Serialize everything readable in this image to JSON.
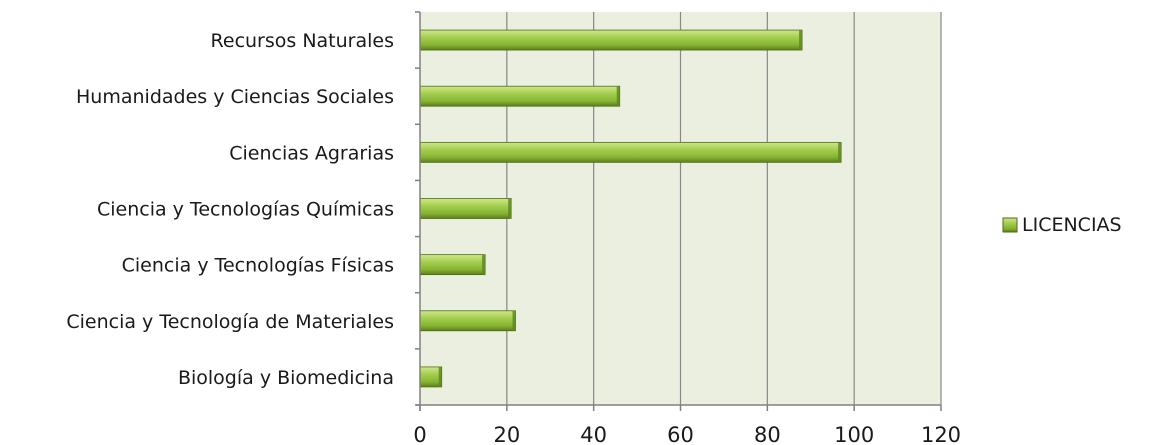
{
  "chart_data": {
    "type": "bar",
    "orientation": "horizontal",
    "categories": [
      "Recursos Naturales",
      "Humanidades y Ciencias Sociales",
      "Ciencias Agrarias",
      "Ciencia y Tecnologías Químicas",
      "Ciencia y Tecnologías Físicas",
      "Ciencia y Tecnología de Materiales",
      "Biología y Biomedicina"
    ],
    "series": [
      {
        "name": "LICENCIAS",
        "values": [
          88,
          46,
          97,
          21,
          15,
          22,
          5
        ]
      }
    ],
    "xlim": [
      0,
      120
    ],
    "xticks": [
      "0",
      "20",
      "40",
      "60",
      "80",
      "100",
      "120"
    ],
    "grid": true,
    "legend": "right",
    "colors": {
      "bar": "#8cb83a",
      "plot_background": "#ebefdf",
      "grid": "#888888"
    }
  }
}
